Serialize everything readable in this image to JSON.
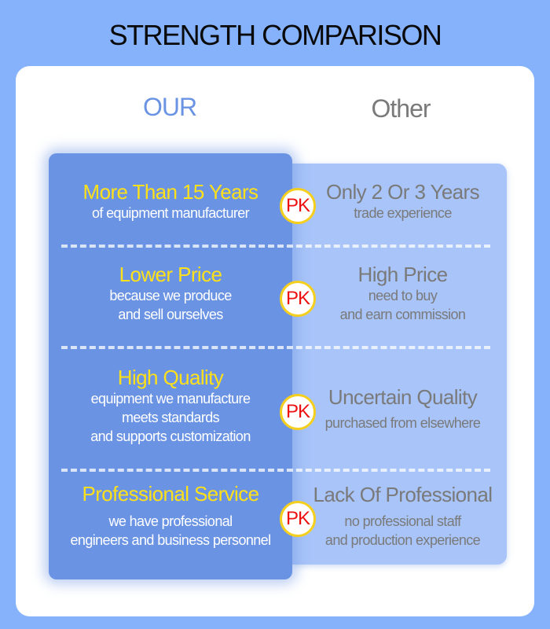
{
  "title": "STRENGTH COMPARISON",
  "columns": {
    "our": "OUR",
    "other": "Other"
  },
  "pk_label": "PK",
  "colors": {
    "background": "#85b2fb",
    "our_panel": "#6a93e3",
    "other_panel": "#a8c4f8",
    "our_heading": "#ffe11a",
    "other_text": "#7a7a7a",
    "pk_text": "#ee1111"
  },
  "rows": [
    {
      "our": {
        "heading": "More Than 15 Years",
        "lines": [
          "of equipment manufacturer"
        ]
      },
      "other": {
        "heading": "Only 2 Or 3 Years",
        "lines": [
          "trade experience"
        ]
      }
    },
    {
      "our": {
        "heading": "Lower Price",
        "lines": [
          "because we produce",
          "and sell ourselves"
        ]
      },
      "other": {
        "heading": "High Price",
        "lines": [
          "need to buy",
          "and earn commission"
        ]
      }
    },
    {
      "our": {
        "heading": "High Quality",
        "lines": [
          "equipment we manufacture",
          "meets standards",
          "and supports customization"
        ]
      },
      "other": {
        "heading": "Uncertain Quality",
        "lines": [
          "purchased from elsewhere"
        ]
      }
    },
    {
      "our": {
        "heading": "Professional Service",
        "lines": [
          "we have professional",
          "engineers and business personnel"
        ]
      },
      "other": {
        "heading": "Lack Of Professional",
        "lines": [
          "no professional staff",
          "and production experience"
        ]
      }
    }
  ]
}
